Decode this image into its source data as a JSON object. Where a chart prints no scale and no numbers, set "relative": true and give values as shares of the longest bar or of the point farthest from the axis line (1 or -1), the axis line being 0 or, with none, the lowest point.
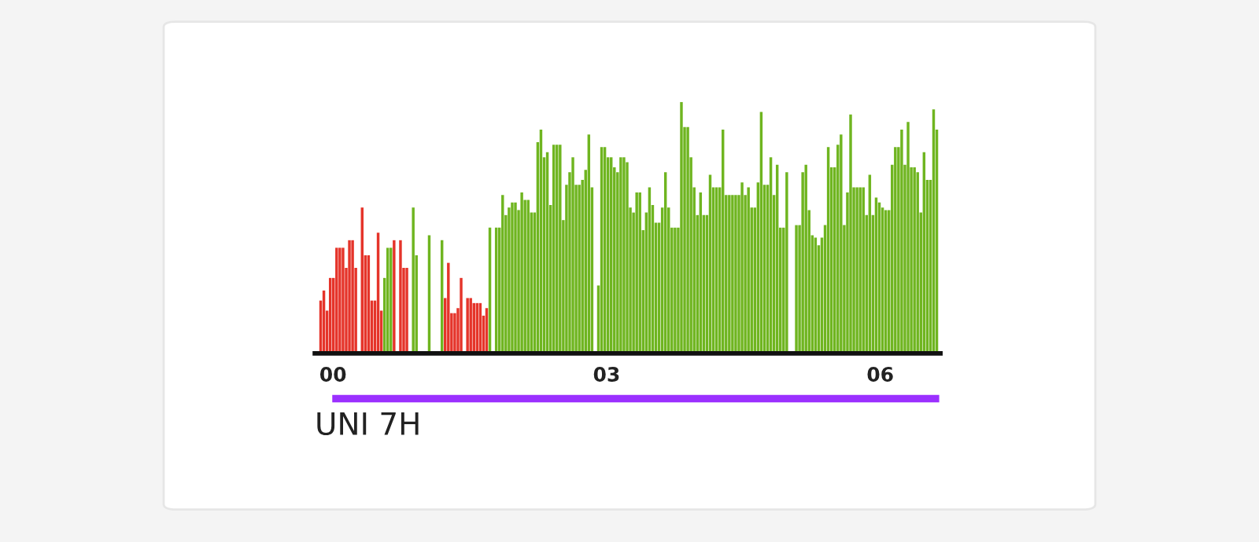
{
  "chart_data": {
    "type": "bar",
    "relative": true,
    "x": [
      -0.15,
      -0.115,
      -0.08,
      -0.045,
      -0.01,
      0.025,
      0.06,
      0.095,
      0.13,
      0.165,
      0.2,
      0.235,
      0.27,
      0.305,
      0.34,
      0.375,
      0.41,
      0.445,
      0.48,
      0.515,
      0.55,
      0.585,
      0.62,
      0.655,
      0.69,
      0.725,
      0.76,
      0.795,
      0.83,
      0.865,
      0.9,
      0.935,
      0.97,
      1.005,
      1.04,
      1.075,
      1.11,
      1.145,
      1.18,
      1.215,
      1.25,
      1.285,
      1.32,
      1.355,
      1.39,
      1.425,
      1.46,
      1.495,
      1.53,
      1.565,
      1.6,
      1.635,
      1.67,
      1.705,
      1.74,
      1.775,
      1.81,
      1.845,
      1.88,
      1.915,
      1.95,
      1.985,
      2.02,
      2.055,
      2.09,
      2.125,
      2.16,
      2.195,
      2.23,
      2.265,
      2.3,
      2.335,
      2.37,
      2.405,
      2.44,
      2.475,
      2.51,
      2.545,
      2.58,
      2.615,
      2.65,
      2.685,
      2.72,
      2.755,
      2.79,
      2.825,
      2.86,
      2.895,
      2.93,
      2.965,
      3,
      3.035,
      3.07,
      3.105,
      3.14,
      3.175,
      3.21,
      3.245,
      3.28,
      3.315,
      3.35,
      3.385,
      3.42,
      3.455,
      3.49,
      3.525,
      3.56,
      3.595,
      3.63,
      3.665,
      3.7,
      3.735,
      3.77,
      3.805,
      3.84,
      3.875,
      3.91,
      3.945,
      3.98,
      4.015,
      4.05,
      4.085,
      4.12,
      4.155,
      4.19,
      4.225,
      4.26,
      4.295,
      4.33,
      4.365,
      4.4,
      4.435,
      4.47,
      4.505,
      4.54,
      4.575,
      4.61,
      4.645,
      4.68,
      4.715,
      4.75,
      4.785,
      4.82,
      4.855,
      4.89,
      4.925,
      4.96,
      4.995,
      5.03,
      5.065,
      5.1,
      5.135,
      5.17,
      5.205,
      5.24,
      5.275,
      5.31,
      5.345,
      5.38,
      5.415,
      5.45,
      5.485,
      5.52,
      5.555,
      5.59,
      5.625,
      5.66,
      5.695,
      5.73,
      5.765,
      5.8,
      5.835,
      5.87,
      5.905,
      5.94,
      5.975,
      6.01,
      6.045,
      6.08,
      6.115,
      6.15,
      6.185,
      6.22,
      6.255,
      6.29,
      6.325,
      6.36,
      6.395,
      6.43,
      6.465,
      6.5,
      6.535,
      6.57,
      6.605
    ],
    "values": [
      0.21,
      0.25,
      0.17,
      0.3,
      0.3,
      0.42,
      0.42,
      0.42,
      0.34,
      0.45,
      0.45,
      0.34,
      null,
      0.58,
      0.39,
      0.39,
      0.21,
      0.21,
      0.48,
      0.17,
      0.3,
      0.42,
      0.42,
      0.45,
      null,
      0.45,
      0.34,
      0.34,
      null,
      0.58,
      0.39,
      null,
      null,
      null,
      0.47,
      null,
      null,
      null,
      0.45,
      0.22,
      0.36,
      0.16,
      0.16,
      0.18,
      0.3,
      null,
      0.22,
      0.22,
      0.2,
      0.2,
      0.2,
      0.15,
      0.18,
      0.5,
      null,
      0.5,
      0.5,
      0.63,
      0.55,
      0.58,
      0.6,
      0.6,
      0.57,
      0.64,
      0.61,
      0.61,
      0.56,
      0.56,
      0.84,
      0.89,
      0.78,
      0.8,
      0.59,
      0.83,
      0.83,
      0.83,
      0.53,
      0.67,
      0.72,
      0.78,
      0.67,
      0.67,
      0.69,
      0.73,
      0.87,
      0.66,
      null,
      0.27,
      0.82,
      0.82,
      0.78,
      0.78,
      0.74,
      0.72,
      0.78,
      0.78,
      0.76,
      0.58,
      0.56,
      0.64,
      0.64,
      0.49,
      0.56,
      0.66,
      0.59,
      0.52,
      0.52,
      0.58,
      0.72,
      0.58,
      0.5,
      0.5,
      0.5,
      1,
      0.9,
      0.9,
      0.78,
      0.66,
      0.55,
      0.64,
      0.55,
      0.55,
      0.71,
      0.66,
      0.66,
      0.66,
      0.89,
      0.63,
      0.63,
      0.63,
      0.63,
      0.63,
      0.68,
      0.63,
      0.66,
      0.58,
      0.58,
      0.68,
      0.96,
      0.67,
      0.67,
      0.78,
      0.63,
      0.75,
      0.5,
      0.5,
      0.72,
      null,
      null,
      0.51,
      0.51,
      0.72,
      0.75,
      0.57,
      0.47,
      0.46,
      0.43,
      0.46,
      0.51,
      0.82,
      0.74,
      0.74,
      0.83,
      0.87,
      0.51,
      0.64,
      0.95,
      0.66,
      0.66,
      0.66,
      0.66,
      0.55,
      0.71,
      0.55,
      0.62,
      0.6,
      0.58,
      0.57,
      0.57,
      0.75,
      0.82,
      0.82,
      0.89,
      0.75,
      0.92,
      0.74,
      0.74,
      0.72,
      0.56,
      0.8,
      0.69,
      0.69,
      0.97,
      0.89
    ],
    "colors": [
      "#e5342a",
      "#e5342a",
      "#e5342a",
      "#e5342a",
      "#e5342a",
      "#e5342a",
      "#e5342a",
      "#e5342a",
      "#e5342a",
      "#e5342a",
      "#e5342a",
      "#e5342a",
      "#e5342a",
      "#e5342a",
      "#e5342a",
      "#e5342a",
      "#e5342a",
      "#e5342a",
      "#e5342a",
      "#e5342a",
      "#6fb520",
      "#6fb520",
      "#6fb520",
      "#e5342a",
      "#e5342a",
      "#e5342a",
      "#e5342a",
      "#e5342a",
      "#e5342a",
      "#6fb520",
      "#6fb520",
      "#6fb520",
      "#6fb520",
      "#6fb520",
      "#6fb520",
      "#6fb520",
      "#6fb520",
      "#6fb520",
      "#6fb520",
      "#e5342a",
      "#e5342a",
      "#e5342a",
      "#e5342a",
      "#e5342a",
      "#e5342a",
      "#e5342a",
      "#e5342a",
      "#e5342a",
      "#e5342a",
      "#e5342a",
      "#e5342a",
      "#e5342a",
      "#e5342a",
      "#6fb520",
      "#6fb520",
      "#6fb520",
      "#6fb520",
      "#6fb520",
      "#6fb520",
      "#6fb520",
      "#6fb520",
      "#6fb520",
      "#6fb520",
      "#6fb520",
      "#6fb520",
      "#6fb520",
      "#6fb520",
      "#6fb520",
      "#6fb520",
      "#6fb520",
      "#6fb520",
      "#6fb520",
      "#6fb520",
      "#6fb520",
      "#6fb520",
      "#6fb520",
      "#6fb520",
      "#6fb520",
      "#6fb520",
      "#6fb520",
      "#6fb520",
      "#6fb520",
      "#6fb520",
      "#6fb520",
      "#6fb520",
      "#6fb520",
      "#6fb520",
      "#6fb520",
      "#6fb520",
      "#6fb520",
      "#6fb520",
      "#6fb520",
      "#6fb520",
      "#6fb520",
      "#6fb520",
      "#6fb520",
      "#6fb520",
      "#6fb520",
      "#6fb520",
      "#6fb520",
      "#6fb520",
      "#6fb520",
      "#6fb520",
      "#6fb520",
      "#6fb520",
      "#6fb520",
      "#6fb520",
      "#6fb520",
      "#6fb520",
      "#6fb520",
      "#6fb520",
      "#6fb520",
      "#6fb520",
      "#6fb520",
      "#6fb520",
      "#6fb520",
      "#6fb520",
      "#6fb520",
      "#6fb520",
      "#6fb520",
      "#6fb520",
      "#6fb520",
      "#6fb520",
      "#6fb520",
      "#6fb520",
      "#6fb520",
      "#6fb520",
      "#6fb520",
      "#6fb520",
      "#6fb520",
      "#6fb520",
      "#6fb520",
      "#6fb520",
      "#6fb520",
      "#6fb520",
      "#6fb520",
      "#6fb520",
      "#6fb520",
      "#6fb520",
      "#6fb520",
      "#6fb520",
      "#6fb520",
      "#6fb520",
      "#6fb520",
      "#6fb520",
      "#6fb520",
      "#6fb520",
      "#6fb520",
      "#6fb520",
      "#6fb520",
      "#6fb520",
      "#6fb520",
      "#6fb520",
      "#6fb520",
      "#6fb520",
      "#6fb520",
      "#6fb520",
      "#6fb520",
      "#6fb520",
      "#6fb520",
      "#6fb520",
      "#6fb520",
      "#6fb520",
      "#6fb520",
      "#6fb520",
      "#6fb520",
      "#6fb520",
      "#6fb520",
      "#6fb520",
      "#6fb520",
      "#6fb520",
      "#6fb520",
      "#6fb520",
      "#6fb520",
      "#6fb520",
      "#6fb520",
      "#6fb520",
      "#6fb520",
      "#6fb520",
      "#6fb520",
      "#6fb520",
      "#6fb520",
      "#6fb520",
      "#6fb520",
      "#6fb520",
      "#6fb520",
      "#6fb520",
      "#6fb520",
      "#6fb520",
      "#6fb520",
      "#6fb520",
      "#6fb520",
      "#6fb520",
      "#6fb520"
    ],
    "xlim": [
      -0.2,
      6.66
    ],
    "xticks": [
      {
        "value": 0,
        "label": "00"
      },
      {
        "value": 3,
        "label": "03"
      },
      {
        "value": 6,
        "label": "06"
      }
    ],
    "annotations": [
      "UNI 7H"
    ]
  }
}
